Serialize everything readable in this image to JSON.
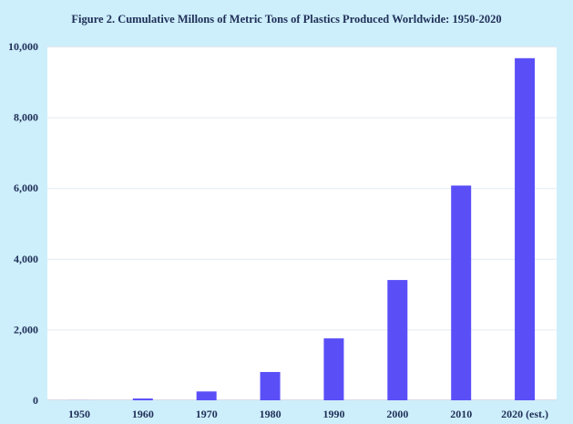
{
  "chart_data": {
    "type": "bar",
    "title": "Figure 2. Cumulative Millons of Metric Tons of Plastics Produced Worldwide: 1950-2020",
    "categories": [
      "1950",
      "1960",
      "1970",
      "1980",
      "1990",
      "2000",
      "2010",
      "2020 (est.)"
    ],
    "values": [
      2,
      50,
      250,
      800,
      1750,
      3400,
      6070,
      9670
    ],
    "ylim": [
      0,
      10000
    ],
    "yticks": [
      0,
      2000,
      4000,
      6000,
      8000,
      10000
    ],
    "ytick_labels": [
      "0",
      "2,000",
      "4,000",
      "6,000",
      "8,000",
      "10,000"
    ],
    "xlabel": "",
    "ylabel": "",
    "grid": true,
    "legend": "none",
    "colors": {
      "bar": "#5a4ff7",
      "background": "#cdeefb",
      "plot_background": "#ffffff",
      "text": "#1f2f57"
    }
  }
}
